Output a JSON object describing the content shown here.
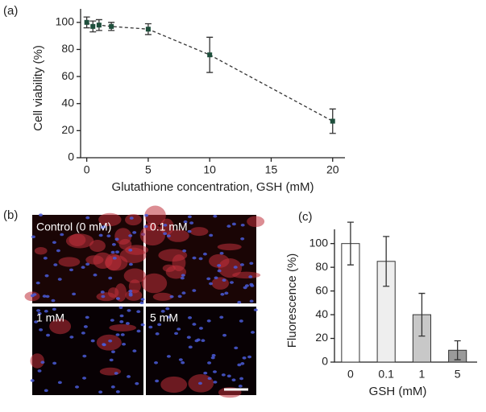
{
  "chart_data": [
    {
      "type": "line",
      "panel_label": "(a)",
      "x": [
        0,
        0.5,
        1,
        2,
        5,
        10,
        20
      ],
      "series": [
        {
          "values": [
            100,
            97,
            98,
            97,
            95,
            76,
            27
          ],
          "errors": [
            4,
            4,
            4,
            3,
            4,
            13,
            9
          ],
          "color": "#1f4f3c"
        }
      ],
      "x_label": "Glutathione concentration, GSH (mM)",
      "y_label": "Cell viability (%)",
      "xlim": [
        -0.5,
        21
      ],
      "xticks": [
        0,
        5,
        10,
        15,
        20
      ],
      "ylim": [
        0,
        110
      ],
      "yticks": [
        0,
        20,
        40,
        60,
        80,
        100
      ]
    },
    {
      "type": "bar",
      "panel_label": "(c)",
      "categories": [
        "0",
        "0.1",
        "1",
        "5"
      ],
      "values": [
        100,
        85,
        40,
        10
      ],
      "errors": [
        18,
        21,
        18,
        8
      ],
      "colors": [
        "#ffffff",
        "#eeeeee",
        "#c8c8c8",
        "#9a9a9a"
      ],
      "x_label": "GSH (mM)",
      "y_label": "Fluorescence (%)",
      "ylim": [
        0,
        112
      ],
      "yticks": [
        0,
        20,
        40,
        60,
        80,
        100
      ]
    }
  ],
  "image_panel": {
    "panel_label": "(b)",
    "tiles": [
      "Control (0 mM)",
      "0.1 mM",
      "1 mM",
      "5 mM"
    ]
  }
}
